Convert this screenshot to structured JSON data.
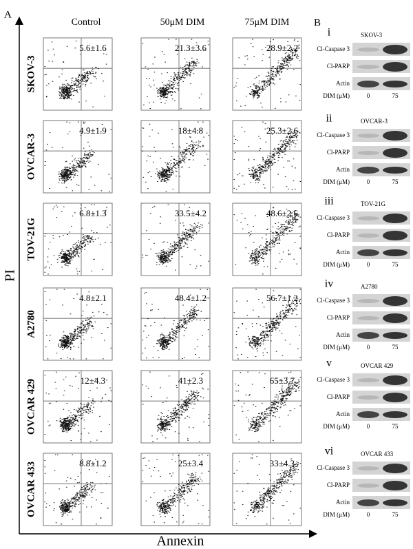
{
  "panel_a": {
    "label": "A",
    "columns": [
      "Control",
      "50μM DIM",
      "75μM DIM"
    ],
    "y_axis_label": "PI",
    "x_axis_label": "Annexin",
    "rows": [
      {
        "cell_line": "SKOV-3",
        "values": [
          "5.6±1.6",
          "21.3±3.6",
          "28.9±2.2"
        ]
      },
      {
        "cell_line": "OVCAR-3",
        "values": [
          "4.9±1.9",
          "18±4.8",
          "25.3±2.6"
        ]
      },
      {
        "cell_line": "TOV-21G",
        "values": [
          "6.8±1.3",
          "33.5±4.2",
          "48.6±2.6"
        ]
      },
      {
        "cell_line": "A2780",
        "values": [
          "4.8±2.1",
          "48.4±1.2",
          "56.7±1.2"
        ]
      },
      {
        "cell_line": "OVCAR 429",
        "values": [
          "12±4.3",
          "41±2.3",
          "65±3.7"
        ]
      },
      {
        "cell_line": "OVCAR 433",
        "values": [
          "8.8±1.2",
          "25±3.4",
          "33±4.3"
        ]
      }
    ]
  },
  "panel_b": {
    "label": "B",
    "blots": [
      {
        "numeral": "i",
        "cell_line": "SKOV-3",
        "bands": [
          "Cl-Caspase 3",
          "Cl-PARP",
          "Actin"
        ],
        "dose_label": "DIM (μM)",
        "doses": [
          0,
          75
        ]
      },
      {
        "numeral": "ii",
        "cell_line": "OVCAR-3",
        "bands": [
          "Cl-Caspase 3",
          "Cl-PARP",
          "Actin"
        ],
        "dose_label": "DIM (μM)",
        "doses": [
          0,
          75
        ]
      },
      {
        "numeral": "iii",
        "cell_line": "TOV-21G",
        "bands": [
          "Cl-Caspase 3",
          "Cl-PARP",
          "Actin"
        ],
        "dose_label": "DIM (μM)",
        "doses": [
          0,
          75
        ]
      },
      {
        "numeral": "iv",
        "cell_line": "A2780",
        "bands": [
          "Cl-Caspase 3",
          "Cl-PARP",
          "Actin"
        ],
        "dose_label": "DIM (μM)",
        "doses": [
          0,
          75
        ]
      },
      {
        "numeral": "v",
        "cell_line": "OVCAR 429",
        "bands": [
          "Cl-Caspase 3",
          "Cl-PARP",
          "Actin"
        ],
        "dose_label": "DIM (μM)",
        "doses": [
          0,
          75
        ]
      },
      {
        "numeral": "vi",
        "cell_line": "OVCAR 433",
        "bands": [
          "Cl-Caspase 3",
          "Cl-PARP",
          "Actin"
        ],
        "dose_label": "DIM (μM)",
        "doses": [
          0,
          75
        ]
      }
    ]
  }
}
